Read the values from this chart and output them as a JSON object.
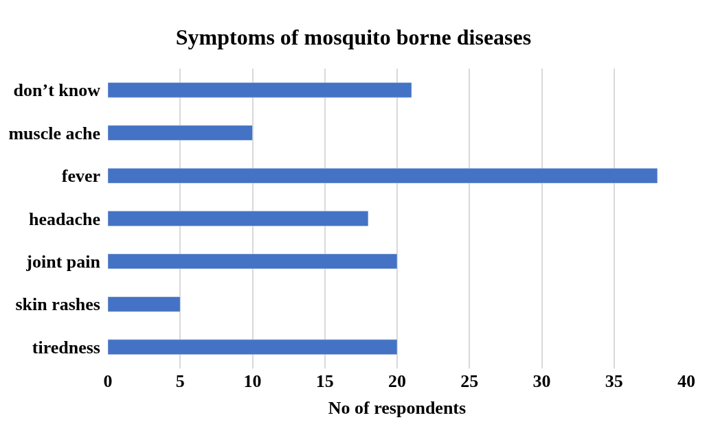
{
  "chart_data": {
    "type": "bar",
    "title": "Symptoms of mosquito borne diseases",
    "xlabel": "No of respondents",
    "orientation": "horizontal",
    "categories": [
      "don’t know",
      "muscle ache",
      "fever",
      "headache",
      "joint pain",
      "skin rashes",
      "tiredness"
    ],
    "values": [
      21,
      10,
      38,
      18,
      20,
      5,
      20
    ],
    "color": "#4472c4",
    "xlim": [
      0,
      40
    ],
    "xticks": [
      0,
      5,
      10,
      15,
      20,
      25,
      30,
      35,
      40
    ],
    "grid": "x"
  }
}
